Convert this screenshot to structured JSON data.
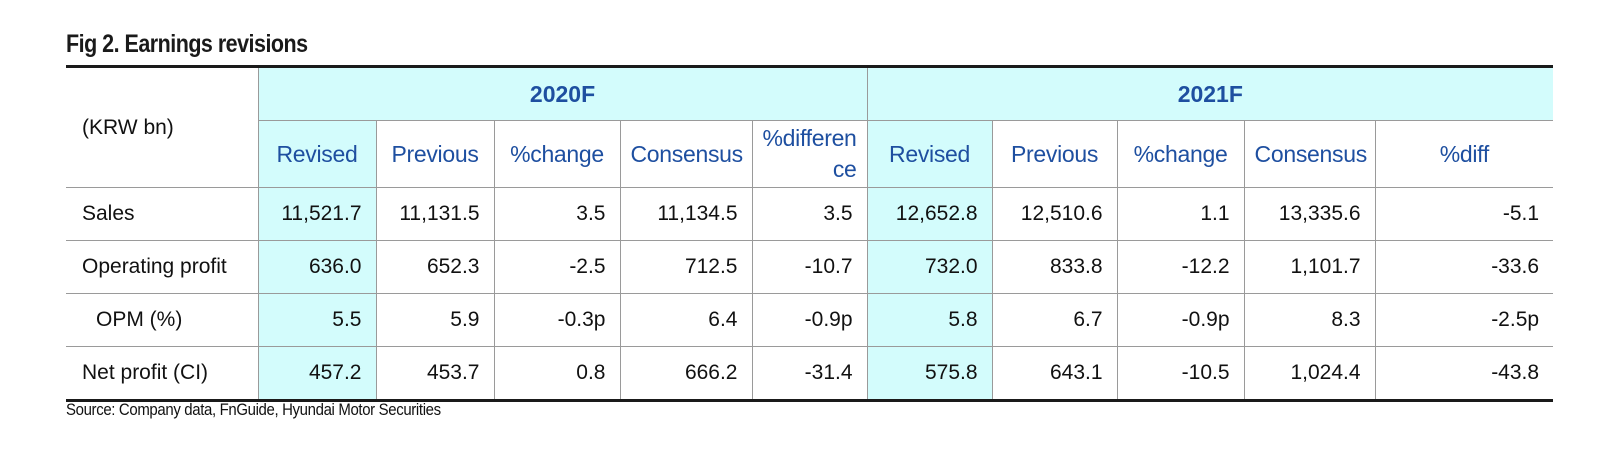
{
  "title": "Fig 2. Earnings revisions",
  "unit_label": "(KRW bn)",
  "groups": [
    "2020F",
    "2021F"
  ],
  "columns_2020": [
    "Revised",
    "Previous",
    "%change",
    "Consensus",
    "%difference"
  ],
  "columns_2021": [
    "Revised",
    "Previous",
    "%change",
    "Consensus",
    "%diff"
  ],
  "rows": [
    {
      "label": "Sales",
      "v2020": [
        "11,521.7",
        "11,131.5",
        "3.5",
        "11,134.5",
        "3.5"
      ],
      "v2021": [
        "12,652.8",
        "12,510.6",
        "1.1",
        "13,335.6",
        "-5.1"
      ]
    },
    {
      "label": "Operating profit",
      "v2020": [
        "636.0",
        "652.3",
        "-2.5",
        "712.5",
        "-10.7"
      ],
      "v2021": [
        "732.0",
        "833.8",
        "-12.2",
        "1,101.7",
        "-33.6"
      ]
    },
    {
      "label": "OPM (%)",
      "v2020": [
        "5.5",
        "5.9",
        "-0.3p",
        "6.4",
        "-0.9p"
      ],
      "v2021": [
        "5.8",
        "6.7",
        "-0.9p",
        "8.3",
        "-2.5p"
      ]
    },
    {
      "label": "Net profit (CI)",
      "v2020": [
        "457.2",
        "453.7",
        "0.8",
        "666.2",
        "-31.4"
      ],
      "v2021": [
        "575.8",
        "643.1",
        "-10.5",
        "1,024.4",
        "-43.8"
      ]
    }
  ],
  "source": "Source: Company data, FnGuide, Hyundai Motor Securities",
  "colors": {
    "header_bg": "#d3fcfc",
    "header_text": "#1e4fa0",
    "rule": "#1a1a1a",
    "grid": "#9a9a9a"
  }
}
